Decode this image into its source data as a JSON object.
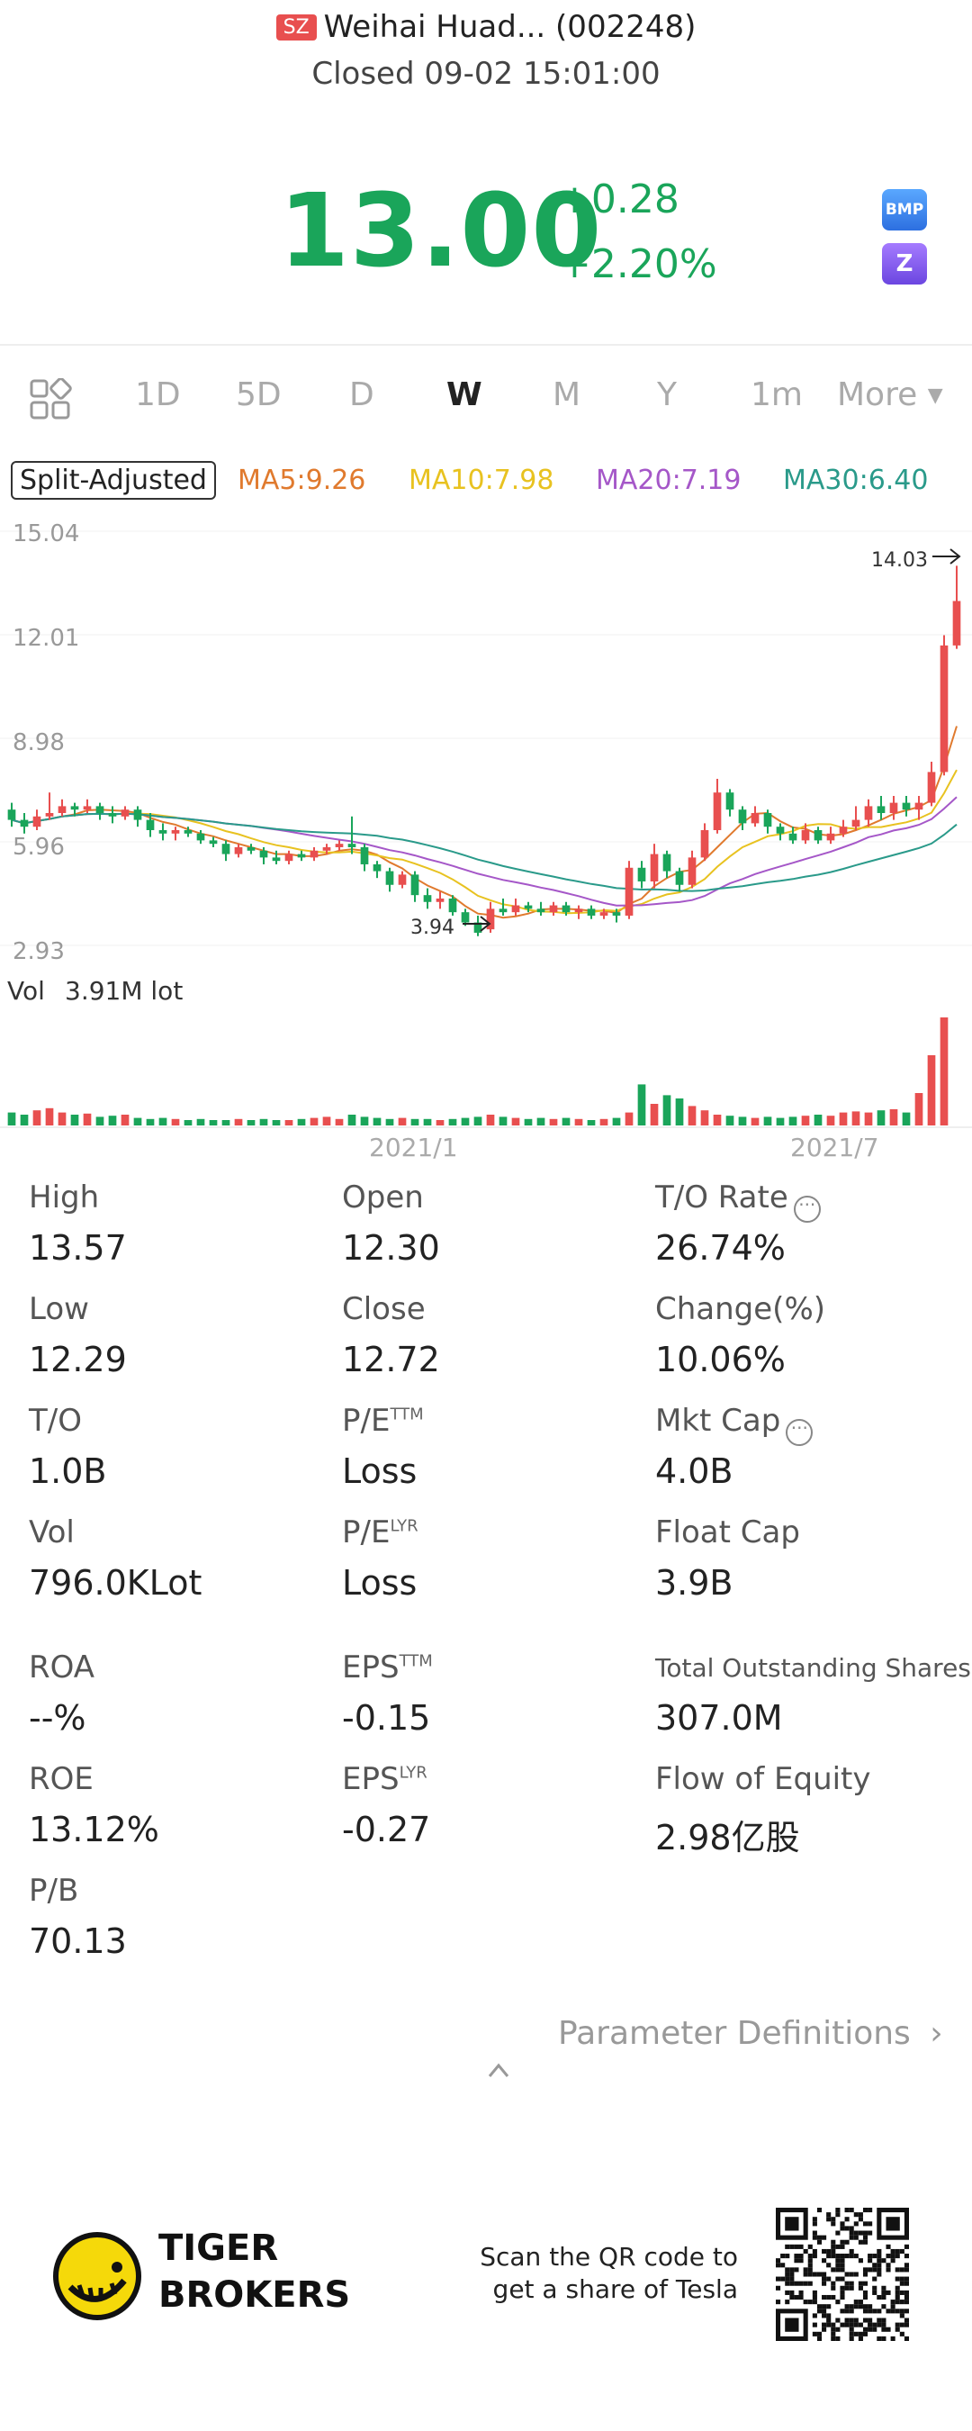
{
  "header": {
    "market_badge": "SZ",
    "title": "Weihai Huad... (002248)",
    "status": "Closed 09-02 15:01:00"
  },
  "quote": {
    "price": "13.00",
    "change": "+0.28",
    "change_pct": "+2.20%",
    "up_color": "#1aa55a",
    "badge_bmp": "BMP",
    "badge_zz": "Z"
  },
  "tabs": [
    "1D",
    "5D",
    "D",
    "W",
    "M",
    "Y",
    "1m",
    "More"
  ],
  "active_tab": "W",
  "ma": {
    "split_label": "Split-Adjusted",
    "ma5": "MA5:9.26",
    "ma10": "MA10:7.98",
    "ma20": "MA20:7.19",
    "ma30": "MA30:6.40",
    "colors": {
      "ma5": "#e07a2e",
      "ma10": "#e8c220",
      "ma20": "#a557c8",
      "ma30": "#2a9a8a"
    }
  },
  "chart_data": {
    "type": "candlestick",
    "y_ticks": [
      "15.04",
      "12.01",
      "8.98",
      "5.96",
      "2.93"
    ],
    "ylim": [
      2.93,
      15.04
    ],
    "x_labels": [
      "2021/1",
      "2021/7"
    ],
    "high_marker": "14.03",
    "low_marker": "3.94",
    "vol_label": "Vol",
    "vol_value": "3.91M lot",
    "candles": [
      {
        "o": 6.9,
        "c": 6.6,
        "h": 7.1,
        "l": 6.4
      },
      {
        "o": 6.6,
        "c": 6.4,
        "h": 6.8,
        "l": 6.2
      },
      {
        "o": 6.4,
        "c": 6.7,
        "h": 6.9,
        "l": 6.3
      },
      {
        "o": 6.7,
        "c": 6.8,
        "h": 7.4,
        "l": 6.6
      },
      {
        "o": 6.8,
        "c": 7.0,
        "h": 7.2,
        "l": 6.7
      },
      {
        "o": 7.0,
        "c": 6.9,
        "h": 7.1,
        "l": 6.7
      },
      {
        "o": 6.9,
        "c": 7.0,
        "h": 7.2,
        "l": 6.8
      },
      {
        "o": 7.0,
        "c": 6.8,
        "h": 7.1,
        "l": 6.6
      },
      {
        "o": 6.8,
        "c": 6.7,
        "h": 7.0,
        "l": 6.5
      },
      {
        "o": 6.7,
        "c": 6.9,
        "h": 7.0,
        "l": 6.6
      },
      {
        "o": 6.9,
        "c": 6.6,
        "h": 7.0,
        "l": 6.4
      },
      {
        "o": 6.6,
        "c": 6.3,
        "h": 6.8,
        "l": 6.1
      },
      {
        "o": 6.3,
        "c": 6.2,
        "h": 6.5,
        "l": 6.0
      },
      {
        "o": 6.2,
        "c": 6.3,
        "h": 6.4,
        "l": 6.0
      },
      {
        "o": 6.3,
        "c": 6.2,
        "h": 6.4,
        "l": 6.1
      },
      {
        "o": 6.2,
        "c": 6.0,
        "h": 6.3,
        "l": 5.9
      },
      {
        "o": 6.0,
        "c": 5.9,
        "h": 6.1,
        "l": 5.8
      },
      {
        "o": 5.9,
        "c": 5.6,
        "h": 6.0,
        "l": 5.4
      },
      {
        "o": 5.6,
        "c": 5.8,
        "h": 5.9,
        "l": 5.5
      },
      {
        "o": 5.8,
        "c": 5.7,
        "h": 5.9,
        "l": 5.6
      },
      {
        "o": 5.7,
        "c": 5.5,
        "h": 5.8,
        "l": 5.3
      },
      {
        "o": 5.5,
        "c": 5.4,
        "h": 5.7,
        "l": 5.3
      },
      {
        "o": 5.4,
        "c": 5.6,
        "h": 5.7,
        "l": 5.3
      },
      {
        "o": 5.6,
        "c": 5.5,
        "h": 5.7,
        "l": 5.4
      },
      {
        "o": 5.5,
        "c": 5.7,
        "h": 5.8,
        "l": 5.4
      },
      {
        "o": 5.7,
        "c": 5.8,
        "h": 5.9,
        "l": 5.6
      },
      {
        "o": 5.8,
        "c": 5.9,
        "h": 6.0,
        "l": 5.7
      },
      {
        "o": 5.9,
        "c": 5.8,
        "h": 6.7,
        "l": 5.6
      },
      {
        "o": 5.8,
        "c": 5.3,
        "h": 5.9,
        "l": 5.1
      },
      {
        "o": 5.3,
        "c": 5.1,
        "h": 5.4,
        "l": 4.9
      },
      {
        "o": 5.1,
        "c": 4.7,
        "h": 5.2,
        "l": 4.5
      },
      {
        "o": 4.7,
        "c": 5.0,
        "h": 5.1,
        "l": 4.6
      },
      {
        "o": 5.0,
        "c": 4.4,
        "h": 5.1,
        "l": 4.2
      },
      {
        "o": 4.4,
        "c": 4.2,
        "h": 4.6,
        "l": 4.0
      },
      {
        "o": 4.2,
        "c": 4.3,
        "h": 4.5,
        "l": 4.0
      },
      {
        "o": 4.3,
        "c": 3.9,
        "h": 4.4,
        "l": 3.8
      },
      {
        "o": 3.9,
        "c": 3.6,
        "h": 4.0,
        "l": 3.5
      },
      {
        "o": 3.6,
        "c": 3.3,
        "h": 3.8,
        "l": 3.2
      },
      {
        "o": 3.4,
        "c": 4.0,
        "h": 4.2,
        "l": 3.3
      },
      {
        "o": 4.0,
        "c": 3.9,
        "h": 4.3,
        "l": 3.8
      },
      {
        "o": 3.9,
        "c": 4.1,
        "h": 4.3,
        "l": 3.8
      },
      {
        "o": 4.1,
        "c": 4.0,
        "h": 4.2,
        "l": 3.9
      },
      {
        "o": 4.0,
        "c": 3.9,
        "h": 4.2,
        "l": 3.8
      },
      {
        "o": 3.9,
        "c": 4.1,
        "h": 4.2,
        "l": 3.8
      },
      {
        "o": 4.1,
        "c": 3.9,
        "h": 4.2,
        "l": 3.8
      },
      {
        "o": 3.9,
        "c": 4.0,
        "h": 4.1,
        "l": 3.7
      },
      {
        "o": 4.0,
        "c": 3.8,
        "h": 4.1,
        "l": 3.7
      },
      {
        "o": 3.8,
        "c": 3.9,
        "h": 4.0,
        "l": 3.7
      },
      {
        "o": 3.9,
        "c": 3.8,
        "h": 4.0,
        "l": 3.6
      },
      {
        "o": 3.8,
        "c": 5.2,
        "h": 5.4,
        "l": 3.7
      },
      {
        "o": 5.2,
        "c": 4.8,
        "h": 5.4,
        "l": 4.6
      },
      {
        "o": 4.8,
        "c": 5.6,
        "h": 5.9,
        "l": 4.6
      },
      {
        "o": 5.6,
        "c": 5.1,
        "h": 5.7,
        "l": 4.9
      },
      {
        "o": 5.1,
        "c": 4.7,
        "h": 5.2,
        "l": 4.5
      },
      {
        "o": 4.7,
        "c": 5.5,
        "h": 5.7,
        "l": 4.6
      },
      {
        "o": 5.5,
        "c": 6.3,
        "h": 6.5,
        "l": 5.4
      },
      {
        "o": 6.3,
        "c": 7.4,
        "h": 7.8,
        "l": 6.2
      },
      {
        "o": 7.4,
        "c": 6.9,
        "h": 7.5,
        "l": 6.7
      },
      {
        "o": 6.9,
        "c": 6.5,
        "h": 7.0,
        "l": 6.3
      },
      {
        "o": 6.5,
        "c": 6.8,
        "h": 7.0,
        "l": 6.4
      },
      {
        "o": 6.8,
        "c": 6.4,
        "h": 6.9,
        "l": 6.2
      },
      {
        "o": 6.4,
        "c": 6.2,
        "h": 6.5,
        "l": 6.0
      },
      {
        "o": 6.2,
        "c": 6.0,
        "h": 6.4,
        "l": 5.9
      },
      {
        "o": 6.0,
        "c": 6.3,
        "h": 6.5,
        "l": 5.9
      },
      {
        "o": 6.3,
        "c": 6.0,
        "h": 6.4,
        "l": 5.9
      },
      {
        "o": 6.0,
        "c": 6.2,
        "h": 6.4,
        "l": 5.9
      },
      {
        "o": 6.2,
        "c": 6.4,
        "h": 6.6,
        "l": 6.1
      },
      {
        "o": 6.4,
        "c": 6.6,
        "h": 7.0,
        "l": 6.3
      },
      {
        "o": 6.6,
        "c": 7.0,
        "h": 7.2,
        "l": 6.4
      },
      {
        "o": 7.0,
        "c": 6.8,
        "h": 7.3,
        "l": 6.6
      },
      {
        "o": 6.8,
        "c": 7.1,
        "h": 7.3,
        "l": 6.6
      },
      {
        "o": 7.1,
        "c": 6.9,
        "h": 7.3,
        "l": 6.7
      },
      {
        "o": 6.9,
        "c": 7.1,
        "h": 7.3,
        "l": 6.6
      },
      {
        "o": 7.1,
        "c": 8.0,
        "h": 8.3,
        "l": 7.0
      },
      {
        "o": 8.0,
        "c": 11.7,
        "h": 12.0,
        "l": 7.9
      },
      {
        "o": 11.7,
        "c": 13.0,
        "h": 14.03,
        "l": 11.6
      }
    ],
    "volumes": [
      0.12,
      0.1,
      0.14,
      0.16,
      0.12,
      0.1,
      0.11,
      0.08,
      0.09,
      0.1,
      0.07,
      0.06,
      0.07,
      0.06,
      0.05,
      0.06,
      0.05,
      0.05,
      0.06,
      0.05,
      0.06,
      0.05,
      0.05,
      0.06,
      0.07,
      0.08,
      0.06,
      0.1,
      0.08,
      0.07,
      0.06,
      0.07,
      0.06,
      0.06,
      0.05,
      0.06,
      0.07,
      0.08,
      0.1,
      0.08,
      0.07,
      0.06,
      0.07,
      0.06,
      0.07,
      0.06,
      0.05,
      0.06,
      0.07,
      0.12,
      0.38,
      0.2,
      0.28,
      0.25,
      0.18,
      0.14,
      0.1,
      0.09,
      0.08,
      0.07,
      0.08,
      0.07,
      0.08,
      0.09,
      0.1,
      0.09,
      0.12,
      0.13,
      0.12,
      0.14,
      0.15,
      0.12,
      0.3,
      0.65,
      1.0
    ]
  },
  "stats": {
    "col1": [
      {
        "label": "High",
        "value": "13.57"
      },
      {
        "label": "Low",
        "value": "12.29"
      },
      {
        "label": "T/O",
        "value": "1.0B"
      },
      {
        "label": "Vol",
        "value": "796.0KLot"
      },
      {
        "label": "ROA",
        "value": "--%"
      },
      {
        "label": "ROE",
        "value": "13.12%"
      },
      {
        "label": "P/B",
        "value": "70.13"
      }
    ],
    "col2": [
      {
        "label": "Open",
        "sup": "",
        "value": "12.30"
      },
      {
        "label": "Close",
        "sup": "",
        "value": "12.72"
      },
      {
        "label": "P/E",
        "sup": "TTM",
        "value": "Loss"
      },
      {
        "label": "P/E",
        "sup": "LYR",
        "value": "Loss"
      },
      {
        "label": "EPS",
        "sup": "TTM",
        "value": "-0.15"
      },
      {
        "label": "EPS",
        "sup": "LYR",
        "value": "-0.27"
      }
    ],
    "col3": [
      {
        "label": "T/O Rate",
        "value": "26.74%"
      },
      {
        "label": "Change(%)",
        "value": "10.06%"
      },
      {
        "label": "Mkt Cap",
        "value": "4.0B"
      },
      {
        "label": "Float Cap",
        "value": "3.9B"
      },
      {
        "label": "Total Outstanding Shares",
        "value": "307.0M"
      },
      {
        "label": "Flow of Equity",
        "value": "2.98亿股"
      }
    ],
    "param_def": "Parameter Definitions"
  },
  "footer": {
    "brand_line1": "TIGER",
    "brand_line2": "BROKERS",
    "scan_line1": "Scan the QR code to",
    "scan_line2": "get a share of Tesla"
  }
}
